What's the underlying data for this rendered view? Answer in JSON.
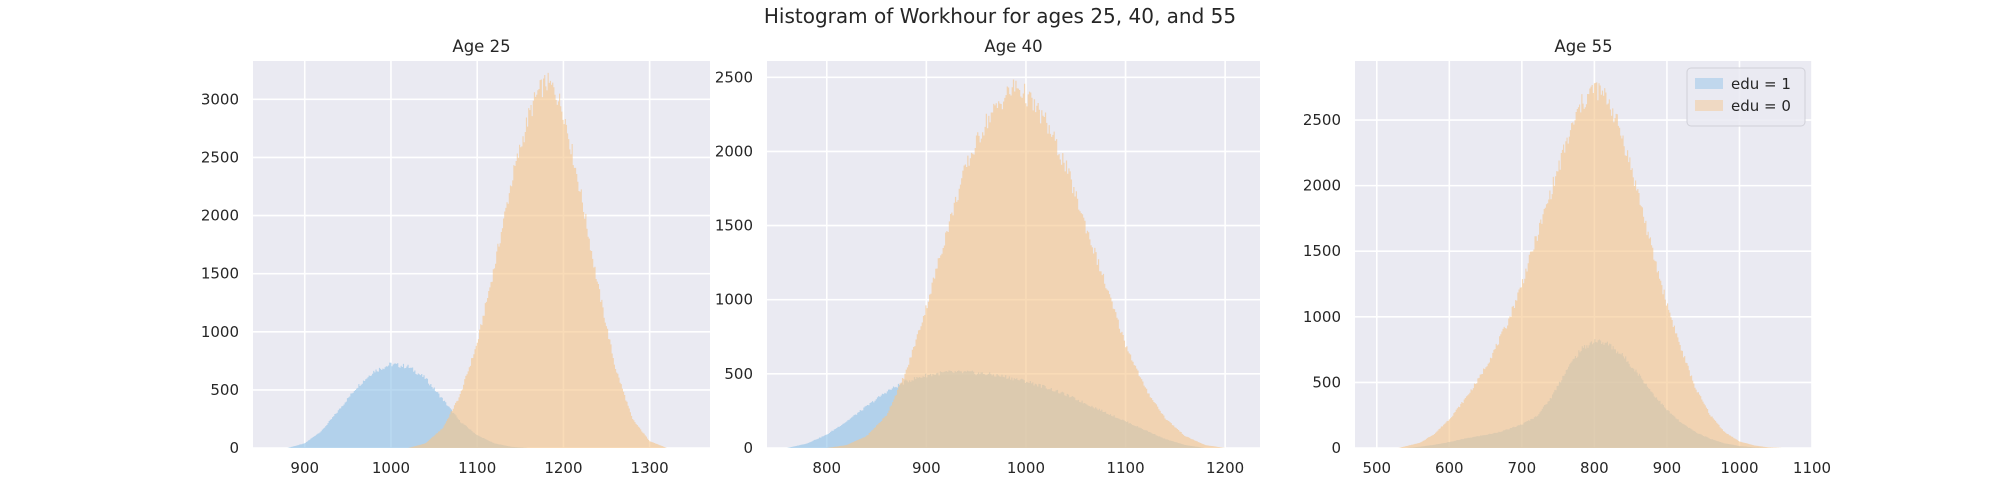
{
  "figure": {
    "title": "Histogram of Workhour for ages 25, 40, and 55",
    "colors": {
      "background": "#eaeaf2",
      "grid": "#ffffff",
      "edu1": "#8fc1e6",
      "edu0": "#f6c58a",
      "overlap": "#c5c29c"
    }
  },
  "chart_data": [
    {
      "type": "histogram",
      "title": "Age 25",
      "xlim": [
        840,
        1370
      ],
      "ylim": [
        0,
        3330
      ],
      "xticks": [
        900,
        1000,
        1100,
        1200,
        1300
      ],
      "yticks": [
        0,
        500,
        1000,
        1500,
        2000,
        2500,
        3000
      ],
      "grid": true,
      "legend": null,
      "series": [
        {
          "name": "edu = 1",
          "color": "#8fc1e6",
          "x": [
            880,
            900,
            920,
            940,
            960,
            980,
            1000,
            1020,
            1040,
            1060,
            1080,
            1100,
            1120,
            1140,
            1160
          ],
          "y": [
            0,
            40,
            150,
            330,
            520,
            660,
            720,
            700,
            600,
            420,
            230,
            110,
            40,
            10,
            0
          ]
        },
        {
          "name": "edu = 0",
          "color": "#f6c58a",
          "x": [
            1020,
            1040,
            1060,
            1080,
            1100,
            1120,
            1140,
            1160,
            1170,
            1180,
            1190,
            1200,
            1220,
            1240,
            1260,
            1280,
            1300,
            1320
          ],
          "y": [
            0,
            40,
            170,
            450,
            900,
            1560,
            2300,
            2860,
            3050,
            3150,
            3080,
            2900,
            2200,
            1400,
            700,
            250,
            60,
            0
          ]
        }
      ]
    },
    {
      "type": "histogram",
      "title": "Age 40",
      "xlim": [
        740,
        1235
      ],
      "ylim": [
        0,
        2610
      ],
      "xticks": [
        800,
        900,
        1000,
        1100,
        1200
      ],
      "yticks": [
        0,
        500,
        1000,
        1500,
        2000,
        2500
      ],
      "grid": true,
      "legend": null,
      "series": [
        {
          "name": "edu = 1",
          "color": "#8fc1e6",
          "x": [
            760,
            780,
            800,
            820,
            840,
            860,
            880,
            900,
            920,
            940,
            960,
            980,
            1000,
            1020,
            1040,
            1060,
            1080,
            1100,
            1120,
            1140,
            1160,
            1180
          ],
          "y": [
            0,
            30,
            90,
            180,
            280,
            380,
            450,
            490,
            510,
            510,
            500,
            480,
            450,
            410,
            360,
            300,
            240,
            180,
            120,
            60,
            20,
            0
          ]
        },
        {
          "name": "edu = 0",
          "color": "#f6c58a",
          "x": [
            800,
            820,
            840,
            860,
            880,
            900,
            920,
            940,
            960,
            980,
            990,
            1000,
            1020,
            1040,
            1060,
            1080,
            1100,
            1120,
            1140,
            1160,
            1180,
            1200
          ],
          "y": [
            0,
            20,
            80,
            220,
            520,
            950,
            1450,
            1900,
            2200,
            2380,
            2440,
            2380,
            2200,
            1900,
            1500,
            1100,
            700,
            400,
            200,
            80,
            20,
            0
          ]
        }
      ]
    },
    {
      "type": "histogram",
      "title": "Age 55",
      "xlim": [
        470,
        1100
      ],
      "ylim": [
        0,
        2950
      ],
      "xticks": [
        500,
        600,
        700,
        800,
        900,
        1000,
        1100
      ],
      "yticks": [
        0,
        500,
        1000,
        1500,
        2000,
        2500
      ],
      "grid": true,
      "legend": "top-right",
      "series": [
        {
          "name": "edu = 1",
          "color": "#8fc1e6",
          "x": [
            540,
            560,
            580,
            600,
            620,
            640,
            660,
            680,
            700,
            720,
            740,
            760,
            780,
            800,
            820,
            840,
            860,
            880,
            900,
            920,
            940,
            960,
            980,
            1000,
            1020,
            1040
          ],
          "y": [
            0,
            10,
            25,
            45,
            70,
            90,
            110,
            140,
            180,
            240,
            380,
            580,
            740,
            820,
            790,
            700,
            570,
            420,
            290,
            190,
            120,
            70,
            35,
            15,
            5,
            0
          ]
        },
        {
          "name": "edu = 0",
          "color": "#f6c58a",
          "x": [
            530,
            560,
            580,
            600,
            620,
            640,
            660,
            680,
            700,
            720,
            740,
            760,
            780,
            800,
            820,
            840,
            860,
            880,
            900,
            920,
            940,
            960,
            980,
            1000,
            1020,
            1040,
            1060
          ],
          "y": [
            0,
            40,
            110,
            220,
            360,
            520,
            720,
            950,
            1250,
            1600,
            1950,
            2300,
            2600,
            2750,
            2650,
            2350,
            1950,
            1500,
            1100,
            750,
            450,
            250,
            120,
            50,
            20,
            5,
            0
          ]
        }
      ]
    }
  ]
}
